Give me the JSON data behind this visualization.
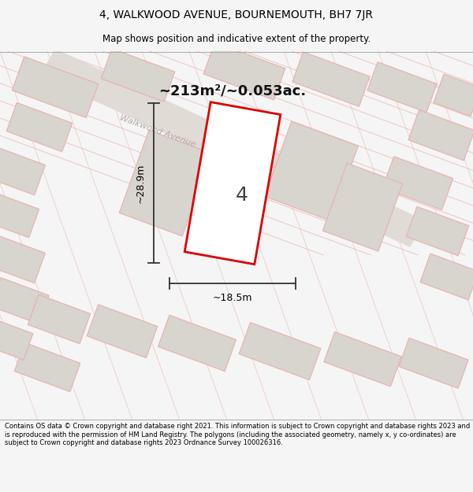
{
  "title_line1": "4, WALKWOOD AVENUE, BOURNEMOUTH, BH7 7JR",
  "title_line2": "Map shows position and indicative extent of the property.",
  "area_label": "~213m²/~0.053ac.",
  "plot_number": "4",
  "dim_width": "~18.5m",
  "dim_height": "~28.9m",
  "street_label": "Walkwood Avenue",
  "footer_text": "Contains OS data © Crown copyright and database right 2021. This information is subject to Crown copyright and database rights 2023 and is reproduced with the permission of HM Land Registry. The polygons (including the associated geometry, namely x, y co-ordinates) are subject to Crown copyright and database rights 2023 Ordnance Survey 100026316.",
  "bg_color": "#f5f5f5",
  "map_bg": "#f0efed",
  "plot_fill": "#ffffff",
  "plot_edge": "#dd0000",
  "road_fill": "#e8e5e0",
  "building_fill": "#d8d4ce",
  "building_edge": "#e8b8b8",
  "boundary_line": "#e8b0b0",
  "title_color": "#000000",
  "footer_color": "#000000",
  "dim_line_color": "#333333",
  "street_text_color": "#b8a8a8"
}
